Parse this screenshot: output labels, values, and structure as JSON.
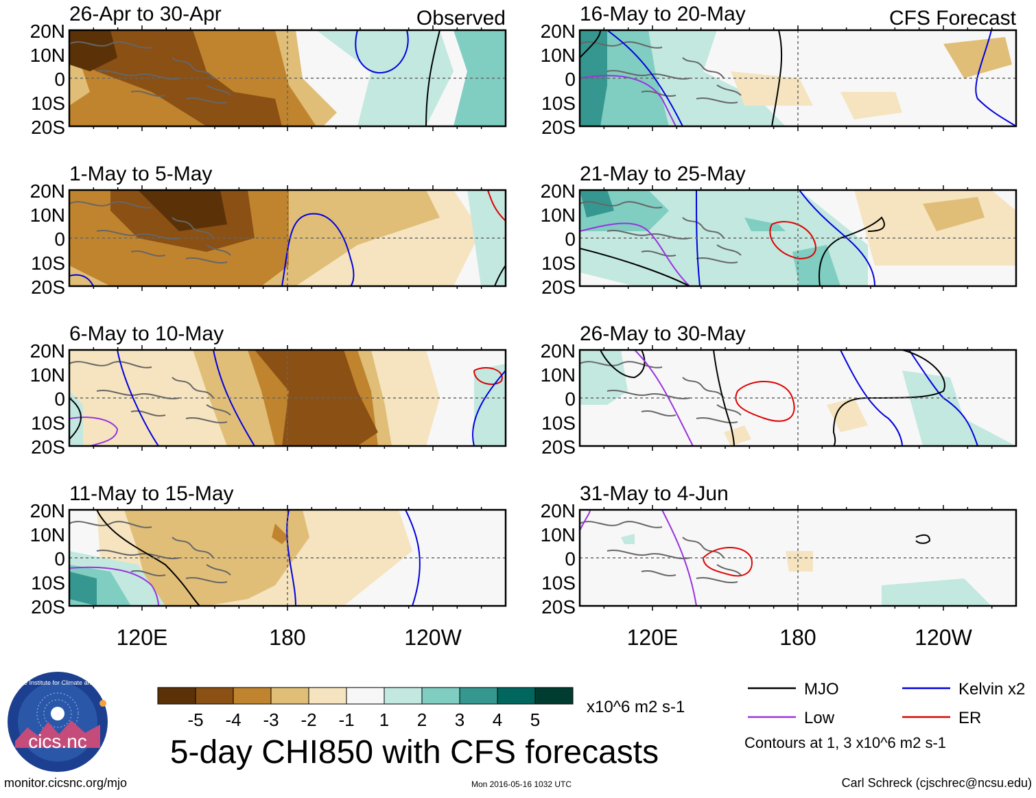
{
  "chart_data": {
    "type": "heatmap",
    "title": "5-day CHI850 with CFS forecasts",
    "variable": "CHI850",
    "units": "x10^6 m2 s-1",
    "lat_ticks": [
      "20N",
      "10N",
      "0",
      "10S",
      "20S"
    ],
    "lat_range": [
      -20,
      20
    ],
    "lon_ticks": [
      "120E",
      "180",
      "120W"
    ],
    "lon_range": [
      90,
      270
    ],
    "colorbar": {
      "levels": [
        "-5",
        "-4",
        "-3",
        "-2",
        "-1",
        "1",
        "2",
        "3",
        "4",
        "5"
      ],
      "colors": [
        "#5b3208",
        "#8a5014",
        "#c0842e",
        "#e0be78",
        "#f5e4bf",
        "#f7f7f7",
        "#c2e8e0",
        "#80cdc1",
        "#35978f",
        "#01665e",
        "#003c30"
      ]
    },
    "contours_note": "Contours at 1, 3 x10^6 m2 s-1",
    "legend": [
      {
        "label": "MJO",
        "color": "#000000"
      },
      {
        "label": "Kelvin x2",
        "color": "#0000dd"
      },
      {
        "label": "Low",
        "color": "#9933dd"
      },
      {
        "label": "ER",
        "color": "#dd0000"
      }
    ],
    "panels": [
      {
        "period": "26-Apr to 30-Apr",
        "tag": "Observed",
        "column": "observed"
      },
      {
        "period": "1-May to 5-May",
        "tag": "",
        "column": "observed"
      },
      {
        "period": "6-May to 10-May",
        "tag": "",
        "column": "observed"
      },
      {
        "period": "11-May to 15-May",
        "tag": "",
        "column": "observed"
      },
      {
        "period": "16-May to 20-May",
        "tag": "CFS Forecast",
        "column": "forecast"
      },
      {
        "period": "21-May to 25-May",
        "tag": "",
        "column": "forecast"
      },
      {
        "period": "26-May to 30-May",
        "tag": "",
        "column": "forecast"
      },
      {
        "period": "31-May to 4-Jun",
        "tag": "",
        "column": "forecast"
      }
    ]
  },
  "logo": {
    "text": "cics.nc",
    "ring_text": "Cooperative Institute for Climate and Satellites"
  },
  "footer": {
    "url": "monitor.cicsnc.org/mjo",
    "timestamp": "Mon 2016-05-16 1032 UTC",
    "author": "Carl Schreck (cjschrec@ncsu.edu)"
  }
}
